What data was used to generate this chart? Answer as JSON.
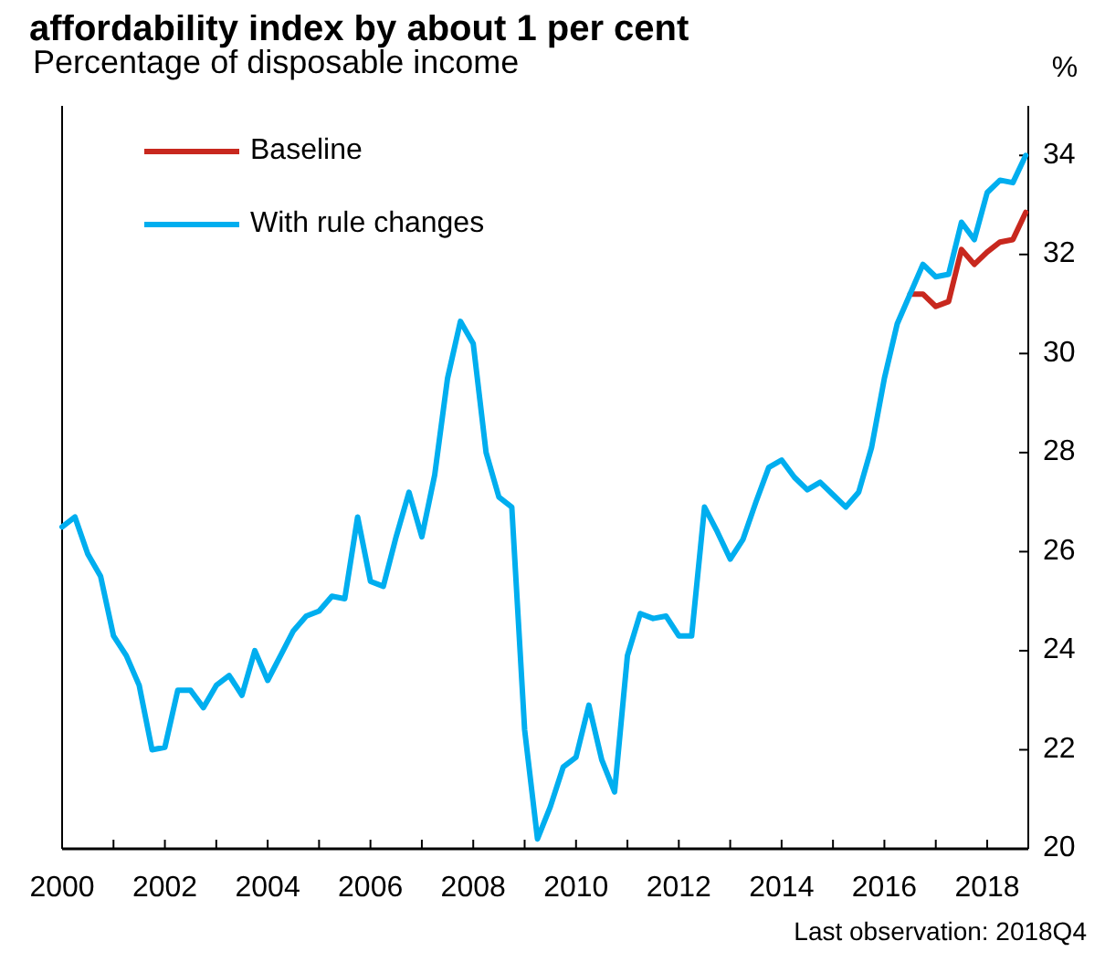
{
  "chart_data": {
    "type": "line",
    "title": "affordability index by about 1 per cent",
    "subtitle": "Percentage of disposable income",
    "ylabel": "%",
    "annotations": [
      "Last observation: 2018Q4"
    ],
    "xlim": [
      2000,
      2018.8
    ],
    "xticks": [
      2000,
      {
        "value": 2001,
        "label": null
      },
      2002,
      {
        "value": 2003,
        "label": null
      },
      2004,
      {
        "value": 2005,
        "label": null
      },
      2006,
      {
        "value": 2007,
        "label": null
      },
      2008,
      {
        "value": 2009,
        "label": null
      },
      2010,
      {
        "value": 2011,
        "label": null
      },
      2012,
      {
        "value": 2013,
        "label": null
      },
      2014,
      {
        "value": 2015,
        "label": null
      },
      2016,
      {
        "value": 2017,
        "label": null
      },
      2018
    ],
    "ylim": [
      20,
      35
    ],
    "yticks": [
      20,
      22,
      24,
      26,
      28,
      30,
      32,
      34
    ],
    "grid": false,
    "legend": "top left",
    "marker": "none",
    "line_style": "solid",
    "series": [
      {
        "name": "Baseline",
        "color": "#c8281e",
        "x": [
          2016.5,
          2016.75,
          2017,
          2017.25,
          2017.5,
          2017.75,
          2018,
          2018.25,
          2018.5,
          2018.75
        ],
        "values": [
          31.2,
          31.2,
          30.95,
          31.05,
          32.1,
          31.8,
          32.05,
          32.25,
          32.3,
          32.85
        ]
      },
      {
        "name": "With rule changes",
        "color": "#00aeef",
        "x": [
          2000,
          2000.25,
          2000.5,
          2000.75,
          2001,
          2001.25,
          2001.5,
          2001.75,
          2002,
          2002.25,
          2002.5,
          2002.75,
          2003,
          2003.25,
          2003.5,
          2003.75,
          2004,
          2004.25,
          2004.5,
          2004.75,
          2005,
          2005.25,
          2005.5,
          2005.75,
          2006,
          2006.25,
          2006.5,
          2006.75,
          2007,
          2007.25,
          2007.5,
          2007.75,
          2008,
          2008.25,
          2008.5,
          2008.75,
          2009,
          2009.25,
          2009.5,
          2009.75,
          2010,
          2010.25,
          2010.5,
          2010.75,
          2011,
          2011.25,
          2011.5,
          2011.75,
          2012,
          2012.25,
          2012.5,
          2012.75,
          2013,
          2013.25,
          2013.5,
          2013.75,
          2014,
          2014.25,
          2014.5,
          2014.75,
          2015,
          2015.25,
          2015.5,
          2015.75,
          2016,
          2016.25,
          2016.5,
          2016.75,
          2017,
          2017.25,
          2017.5,
          2017.75,
          2018,
          2018.25,
          2018.5,
          2018.75
        ],
        "values": [
          26.5,
          26.7,
          25.95,
          25.5,
          24.3,
          23.9,
          23.3,
          22.0,
          22.05,
          23.2,
          23.2,
          22.85,
          23.3,
          23.5,
          23.1,
          24.0,
          23.4,
          23.9,
          24.4,
          24.7,
          24.8,
          25.1,
          25.05,
          26.7,
          25.4,
          25.3,
          26.3,
          27.2,
          26.3,
          27.55,
          29.5,
          30.65,
          30.2,
          28.0,
          27.1,
          26.9,
          22.4,
          20.2,
          20.85,
          21.65,
          21.85,
          22.9,
          21.8,
          21.15,
          23.9,
          24.75,
          24.65,
          24.7,
          24.3,
          24.3,
          26.9,
          26.4,
          25.85,
          26.25,
          27.0,
          27.7,
          27.85,
          27.5,
          27.25,
          27.4,
          27.15,
          26.9,
          27.2,
          28.1,
          29.5,
          30.6,
          31.2,
          31.8,
          31.55,
          31.6,
          32.65,
          32.3,
          33.25,
          33.5,
          33.45,
          34.0
        ]
      }
    ]
  }
}
